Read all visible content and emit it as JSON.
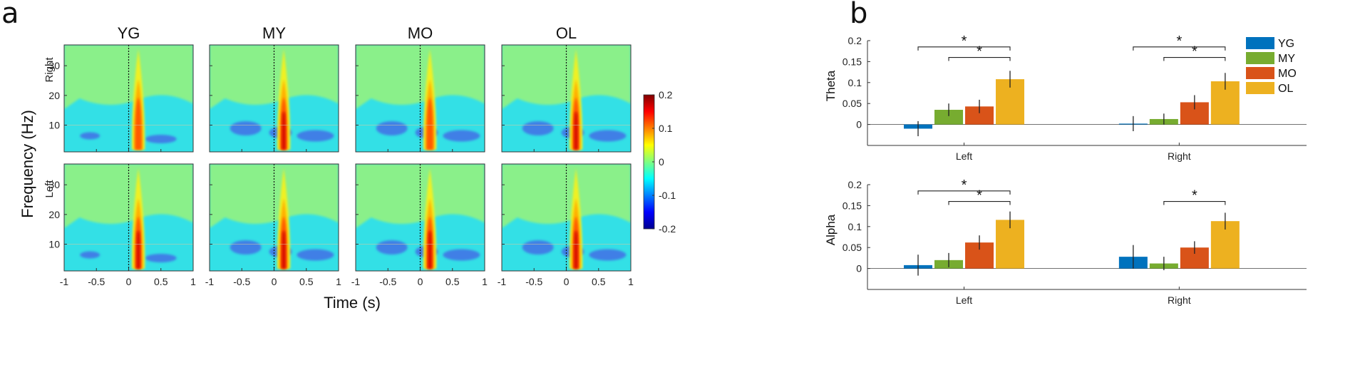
{
  "panel_labels": {
    "a": "a",
    "b": "b"
  },
  "chart_data": [
    {
      "type": "heatmap",
      "panel": "a",
      "columns": [
        "YG",
        "MY",
        "MO",
        "OL"
      ],
      "rows": [
        "Right",
        "Left"
      ],
      "xlabel": "Time (s)",
      "ylabel": "Frequency (Hz)",
      "xlim": [
        -1,
        1
      ],
      "ylim": [
        1,
        37
      ],
      "xticks": [
        "-1",
        "-0.5",
        "0",
        "0.5",
        "1"
      ],
      "xtick_values": [
        -1,
        -0.5,
        0,
        0.5,
        1
      ],
      "yticks": [
        "10",
        "20",
        "30"
      ],
      "ytick_values": [
        10,
        20,
        30
      ],
      "colorbar": {
        "min": -0.2,
        "max": 0.2,
        "ticks": [
          "0.2",
          "0.1",
          "0",
          "-0.1",
          "-0.2"
        ],
        "tick_values": [
          0.2,
          0.1,
          0,
          -0.1,
          -0.2
        ],
        "colormap": "jet"
      },
      "peak_power": {
        "Right": {
          "YG": 0.12,
          "MY": 0.16,
          "MO": 0.12,
          "OL": 0.18
        },
        "Left": {
          "YG": 0.13,
          "MY": 0.15,
          "MO": 0.14,
          "OL": 0.18
        }
      }
    },
    {
      "type": "bar",
      "panel": "b",
      "title": "Theta",
      "ylabel": "Theta",
      "categories": [
        "Left",
        "Right"
      ],
      "ylim": [
        -0.05,
        0.2
      ],
      "yticks": [
        "0.2",
        "0.15",
        "0.1",
        "0.05",
        "0"
      ],
      "ytick_values": [
        0.2,
        0.15,
        0.1,
        0.05,
        0
      ],
      "series": [
        {
          "name": "YG",
          "color": "#0072BD",
          "values": [
            -0.01,
            0.002
          ],
          "errors": [
            0.018,
            0.018
          ]
        },
        {
          "name": "MY",
          "color": "#77AC30",
          "values": [
            0.035,
            0.013
          ],
          "errors": [
            0.015,
            0.013
          ]
        },
        {
          "name": "MO",
          "color": "#D95319",
          "values": [
            0.043,
            0.053
          ],
          "errors": [
            0.016,
            0.017
          ]
        },
        {
          "name": "OL",
          "color": "#EDB120",
          "values": [
            0.108,
            0.103
          ],
          "errors": [
            0.02,
            0.02
          ]
        }
      ],
      "significance": [
        {
          "category": "Left",
          "from": "YG",
          "to": "OL",
          "label": "*",
          "y": 0.185
        },
        {
          "category": "Left",
          "from": "MY",
          "to": "OL",
          "label": "*",
          "y": 0.16
        },
        {
          "category": "Right",
          "from": "YG",
          "to": "OL",
          "label": "*",
          "y": 0.185
        },
        {
          "category": "Right",
          "from": "MY",
          "to": "OL",
          "label": "*",
          "y": 0.16
        }
      ],
      "legend": [
        "YG",
        "MY",
        "MO",
        "OL"
      ]
    },
    {
      "type": "bar",
      "panel": "b",
      "title": "Alpha",
      "ylabel": "Alpha",
      "categories": [
        "Left",
        "Right"
      ],
      "ylim": [
        -0.05,
        0.2
      ],
      "yticks": [
        "0.2",
        "0.15",
        "0.1",
        "0.05",
        "0"
      ],
      "ytick_values": [
        0.2,
        0.15,
        0.1,
        0.05,
        0
      ],
      "series": [
        {
          "name": "YG",
          "color": "#0072BD",
          "values": [
            0.008,
            0.028
          ],
          "errors": [
            0.025,
            0.028
          ]
        },
        {
          "name": "MY",
          "color": "#77AC30",
          "values": [
            0.02,
            0.012
          ],
          "errors": [
            0.017,
            0.016
          ]
        },
        {
          "name": "MO",
          "color": "#D95319",
          "values": [
            0.062,
            0.05
          ],
          "errors": [
            0.017,
            0.015
          ]
        },
        {
          "name": "OL",
          "color": "#EDB120",
          "values": [
            0.116,
            0.113
          ],
          "errors": [
            0.02,
            0.02
          ]
        }
      ],
      "significance": [
        {
          "category": "Left",
          "from": "YG",
          "to": "OL",
          "label": "*",
          "y": 0.185
        },
        {
          "category": "Left",
          "from": "MY",
          "to": "OL",
          "label": "*",
          "y": 0.16
        },
        {
          "category": "Right",
          "from": "MY",
          "to": "OL",
          "label": "*",
          "y": 0.16
        }
      ]
    }
  ]
}
